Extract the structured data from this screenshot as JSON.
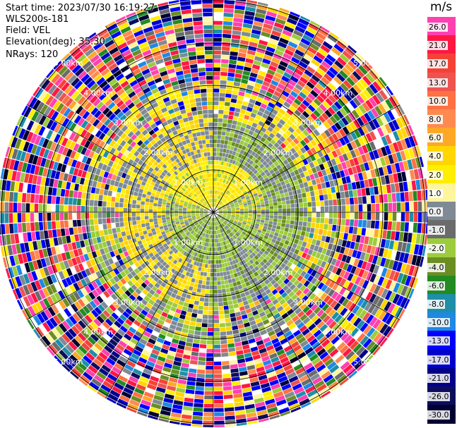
{
  "info": {
    "start_time": "Start time: 2023/07/30 16:19:27",
    "site": "WLS200s-181",
    "field": "Field: VEL",
    "elevation": "Elevation(deg): 35.30",
    "nrays": "NRays: 120"
  },
  "chart_data": {
    "type": "heatmap",
    "projection": "polar PPI",
    "field": "VEL",
    "elevation_deg": 35.3,
    "nrays": 120,
    "unit": "m/s",
    "range_rings_km": [
      1,
      2,
      3,
      4,
      5
    ],
    "ring_labels": [
      "1.00km",
      "2.00km",
      "3.00km",
      "4.00km",
      "5.00km"
    ],
    "colorbar": {
      "unit": "m/s",
      "bins": [
        {
          "label": "26.0",
          "color": "#ff40b0"
        },
        {
          "label": "21.0",
          "color": "#ff1744"
        },
        {
          "label": "17.0",
          "color": "#f44336"
        },
        {
          "label": "13.0",
          "color": "#ef5350"
        },
        {
          "label": "10.0",
          "color": "#ff7043"
        },
        {
          "label": "8.0",
          "color": "#ff8a50"
        },
        {
          "label": "6.0",
          "color": "#ffa726"
        },
        {
          "label": "4.0",
          "color": "#ffd600"
        },
        {
          "label": "2.0",
          "color": "#ffee00"
        },
        {
          "label": "1.0",
          "color": "#fff59d"
        },
        {
          "label": "0.0",
          "color": "#7f8a94"
        },
        {
          "label": "-1.0",
          "color": "#6b6b6b"
        },
        {
          "label": "-2.0",
          "color": "#9ccc3c"
        },
        {
          "label": "-4.0",
          "color": "#6b8e23"
        },
        {
          "label": "-6.0",
          "color": "#228b22"
        },
        {
          "label": "-8.0",
          "color": "#1e8fa8"
        },
        {
          "label": "-10.0",
          "color": "#1e88e5"
        },
        {
          "label": "-13.0",
          "color": "#0000ff"
        },
        {
          "label": "-17.0",
          "color": "#0000cd"
        },
        {
          "label": "-21.0",
          "color": "#00008b"
        },
        {
          "label": "-26.0",
          "color": "#0d0d5e"
        },
        {
          "label": "-30.0",
          "color": "#000033"
        }
      ]
    }
  }
}
